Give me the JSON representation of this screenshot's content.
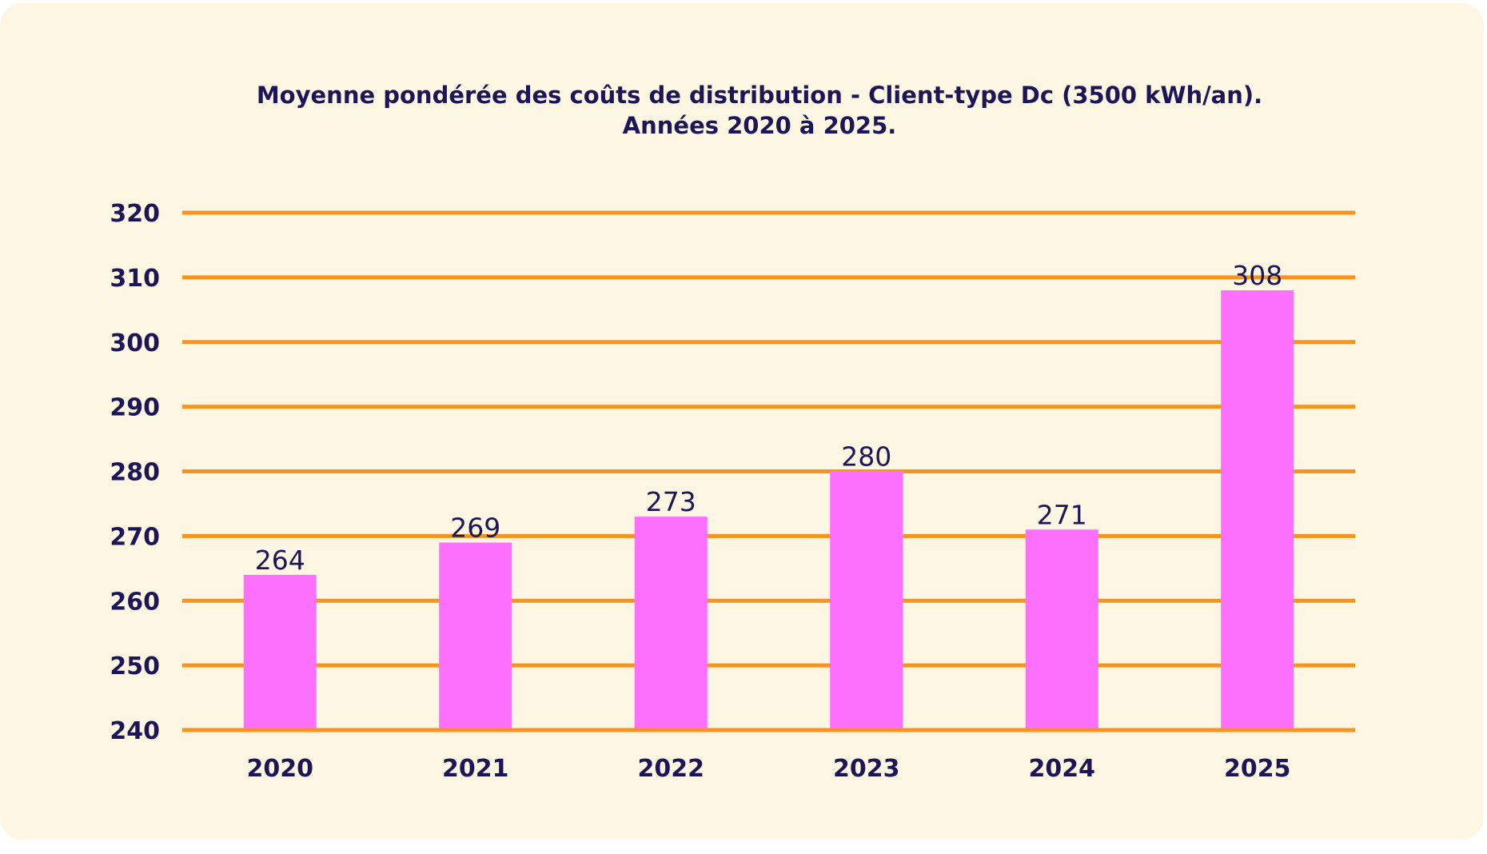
{
  "chart_data": {
    "type": "bar",
    "title": "Moyenne pondérée des coûts de distribution - Client-type Dc (3500 kWh/an).",
    "subtitle": "Années 2020 à 2025.",
    "categories": [
      "2020",
      "2021",
      "2022",
      "2023",
      "2024",
      "2025"
    ],
    "values": [
      264,
      269,
      273,
      280,
      271,
      308
    ],
    "data_labels": [
      "264",
      "269",
      "273",
      "280",
      "271",
      "308"
    ],
    "ylim": [
      240,
      320
    ],
    "yticks": [
      "240",
      "250",
      "260",
      "270",
      "280",
      "290",
      "300",
      "310",
      "320"
    ],
    "xlabel": "",
    "ylabel": "",
    "grid": true,
    "legend": "none",
    "colors": {
      "bar": "#fd6ffd",
      "grid": "#f7941d",
      "text": "#1c1556",
      "background": "#fdf6e2"
    }
  }
}
